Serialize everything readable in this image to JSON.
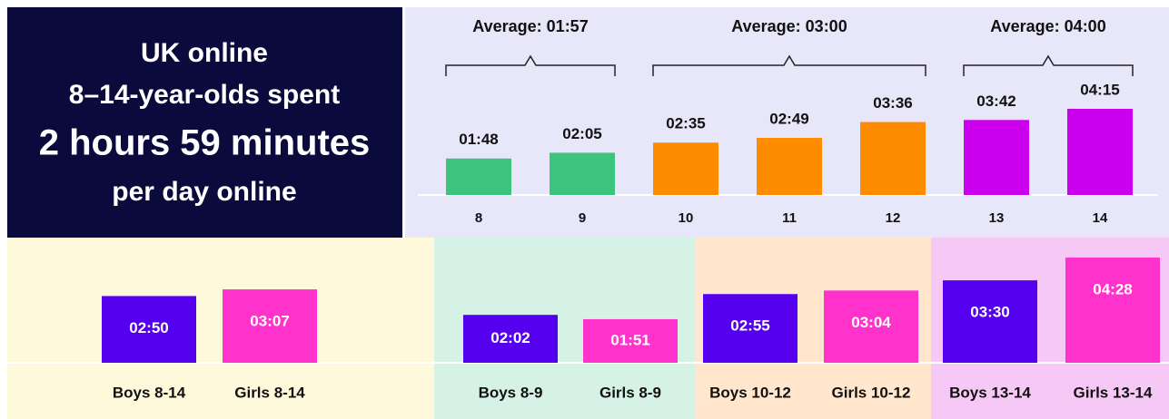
{
  "title_panel": {
    "lines": [
      "UK online",
      "8–14-year-olds spent",
      "2 hours 59 minutes",
      "per day online"
    ]
  },
  "chart_data": [
    {
      "type": "bar",
      "categories": [
        "8",
        "9",
        "10",
        "11",
        "12",
        "13",
        "14"
      ],
      "values": [
        108,
        125,
        155,
        169,
        216,
        222,
        255
      ],
      "value_labels": [
        "01:48",
        "02:05",
        "02:35",
        "02:49",
        "03:36",
        "03:42",
        "04:15"
      ],
      "colors": [
        "#3cc47e",
        "#3cc47e",
        "#ff8c00",
        "#ff8c00",
        "#ff8c00",
        "#cc00ee",
        "#cc00ee"
      ],
      "annotations": [
        {
          "text": "Average: 01:57",
          "value": 117
        },
        {
          "text": "Average: 03:00",
          "value": 180
        },
        {
          "text": "Average: 04:00",
          "value": 240
        }
      ]
    },
    {
      "type": "bar",
      "categories": [
        "Boys 8-14",
        "Girls 8-14",
        "Boys 8-9",
        "Girls 8-9",
        "Boys 10-12",
        "Girls 10-12",
        "Boys 13-14",
        "Girls 13-14"
      ],
      "values": [
        170,
        187,
        122,
        111,
        175,
        184,
        210,
        268
      ],
      "value_labels": [
        "02:50",
        "03:07",
        "02:02",
        "01:51",
        "02:55",
        "03:04",
        "03:30",
        "04:28"
      ],
      "colors": [
        "#5500ee",
        "#ff33cc",
        "#5500ee",
        "#ff33cc",
        "#5500ee",
        "#ff33cc",
        "#5500ee",
        "#ff33cc"
      ],
      "panel_colors": [
        "#fff9dc",
        "#d6f2e6",
        "#ffe6cc",
        "#f5c8f5"
      ]
    }
  ]
}
